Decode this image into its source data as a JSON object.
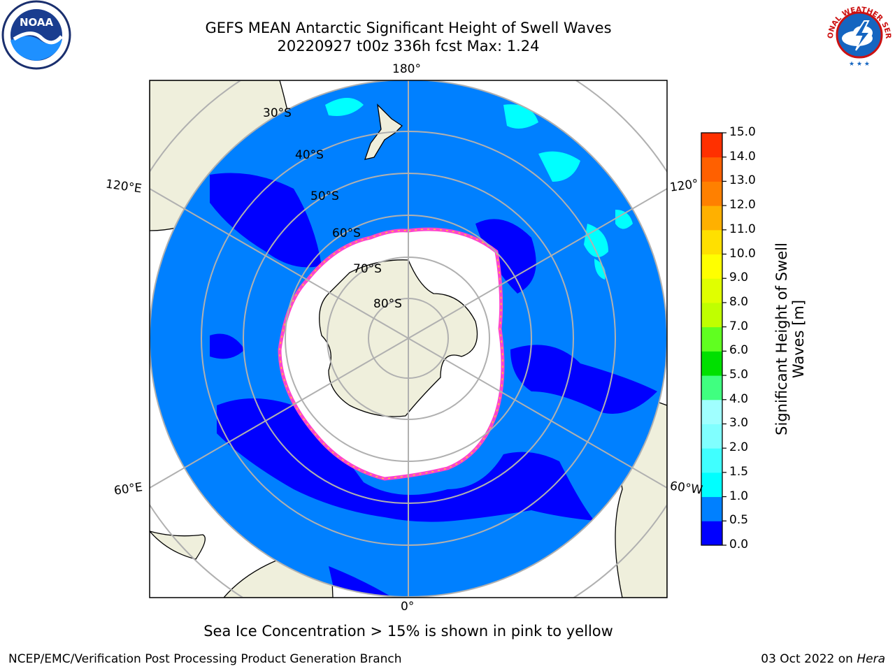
{
  "title": {
    "line1": "GEFS MEAN Antarctic Significant Height of Swell Waves",
    "line2": "20220927 t00z 336h fcst   Max: 1.24"
  },
  "map": {
    "projection": "south-polar-stereographic",
    "longitude_labels": {
      "top": "180°",
      "bottom": "0°",
      "upper_left": "120°E",
      "upper_right": "120°W",
      "lower_left": "60°E",
      "lower_right": "60°W"
    },
    "latitude_labels": [
      "30°S",
      "40°S",
      "50°S",
      "60°S",
      "70°S",
      "80°S"
    ],
    "colors": {
      "land": "#efefdc",
      "ocean_low": "#0000ff",
      "ocean_mid": "#0080ff",
      "ocean_high": "#00ffff",
      "ice": "#ffffff",
      "ice_edge": "#ff44cc",
      "grid": "#b0b0b0"
    }
  },
  "colorbar": {
    "label_line1": "Significant Height of Swell",
    "label_line2": "Waves [m]",
    "ticks": [
      "0.0",
      "0.5",
      "1.0",
      "1.5",
      "2.0",
      "3.0",
      "4.0",
      "5.0",
      "6.0",
      "7.0",
      "8.0",
      "9.0",
      "10.0",
      "11.0",
      "12.0",
      "13.0",
      "14.0",
      "15.0"
    ],
    "colors": [
      "#0000ff",
      "#0080ff",
      "#00ffff",
      "#40ffff",
      "#80ffff",
      "#a0ffff",
      "#40ff80",
      "#00e000",
      "#60ff20",
      "#c0ff00",
      "#e0ff00",
      "#ffff00",
      "#ffe000",
      "#ffb000",
      "#ff8000",
      "#ff6000",
      "#ff3000",
      "#ff0000"
    ]
  },
  "caption": "Sea Ice Concentration > 15% is shown in pink to yellow",
  "footer": {
    "left": "NCEP/EMC/Verification Post Processing Product Generation Branch",
    "right_date": "03 Oct 2022 on ",
    "right_machine": "Hera"
  },
  "logos": {
    "noaa": "NOAA",
    "nws": "NATIONAL WEATHER SERVICE"
  }
}
